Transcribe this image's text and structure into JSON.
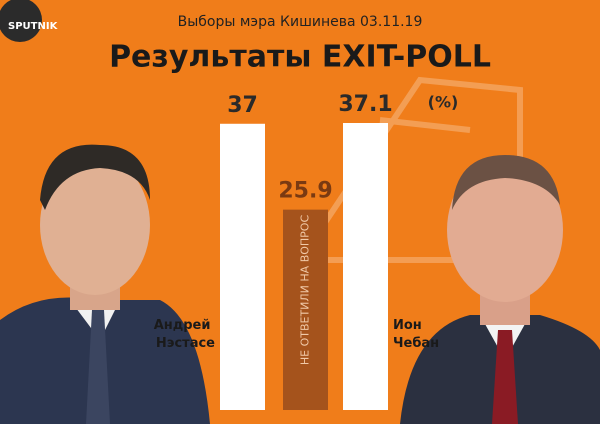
{
  "logo": "SPUTNIK",
  "chart_data": {
    "type": "bar",
    "subtitle": "Выборы мэра Кишинева  03.11.19",
    "title": "Результаты EXIT-POLL",
    "unit_label": "(%)",
    "categories": [
      "Андрей Нэстасе",
      "НЕ ОТВЕТИЛИ НА ВОПРОС",
      "Ион Чебан"
    ],
    "values": [
      37,
      25.9,
      37.1
    ],
    "colors": [
      "#ffffff",
      "#a5531c",
      "#ffffff"
    ]
  }
}
